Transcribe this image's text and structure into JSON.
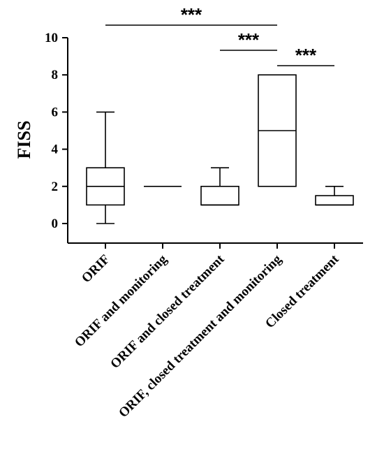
{
  "chart_data": {
    "type": "box",
    "title": "",
    "xlabel": "",
    "ylabel": "FISS",
    "ylim": [
      -1,
      10
    ],
    "yticks": [
      0,
      2,
      4,
      6,
      8,
      10
    ],
    "categories": [
      "ORIF",
      "ORIF and monitoring",
      "ORIF and closed treatment",
      "ORIF, closed treatment and monitoring",
      "Closed treatment"
    ],
    "boxes": [
      {
        "category": "ORIF",
        "min": 0,
        "q1": 1,
        "median": 2,
        "q3": 3,
        "max": 6
      },
      {
        "category": "ORIF and monitoring",
        "min": 2,
        "q1": 2,
        "median": 2,
        "q3": 2,
        "max": 2
      },
      {
        "category": "ORIF and closed treatment",
        "min": 1,
        "q1": 1,
        "median": 1,
        "q3": 2,
        "max": 3
      },
      {
        "category": "ORIF, closed treatment and monitoring",
        "min": 2,
        "q1": 2,
        "median": 5,
        "q3": 8,
        "max": 8
      },
      {
        "category": "Closed treatment",
        "min": 1,
        "q1": 1,
        "median": 1,
        "q3": 1.5,
        "max": 2
      }
    ],
    "significance": [
      {
        "from": "ORIF",
        "to": "ORIF, closed treatment and monitoring",
        "label": "***"
      },
      {
        "from": "ORIF and closed treatment",
        "to": "ORIF, closed treatment and monitoring",
        "label": "***"
      },
      {
        "from": "ORIF, closed treatment and monitoring",
        "to": "Closed treatment",
        "label": "***"
      }
    ],
    "grid": false
  }
}
